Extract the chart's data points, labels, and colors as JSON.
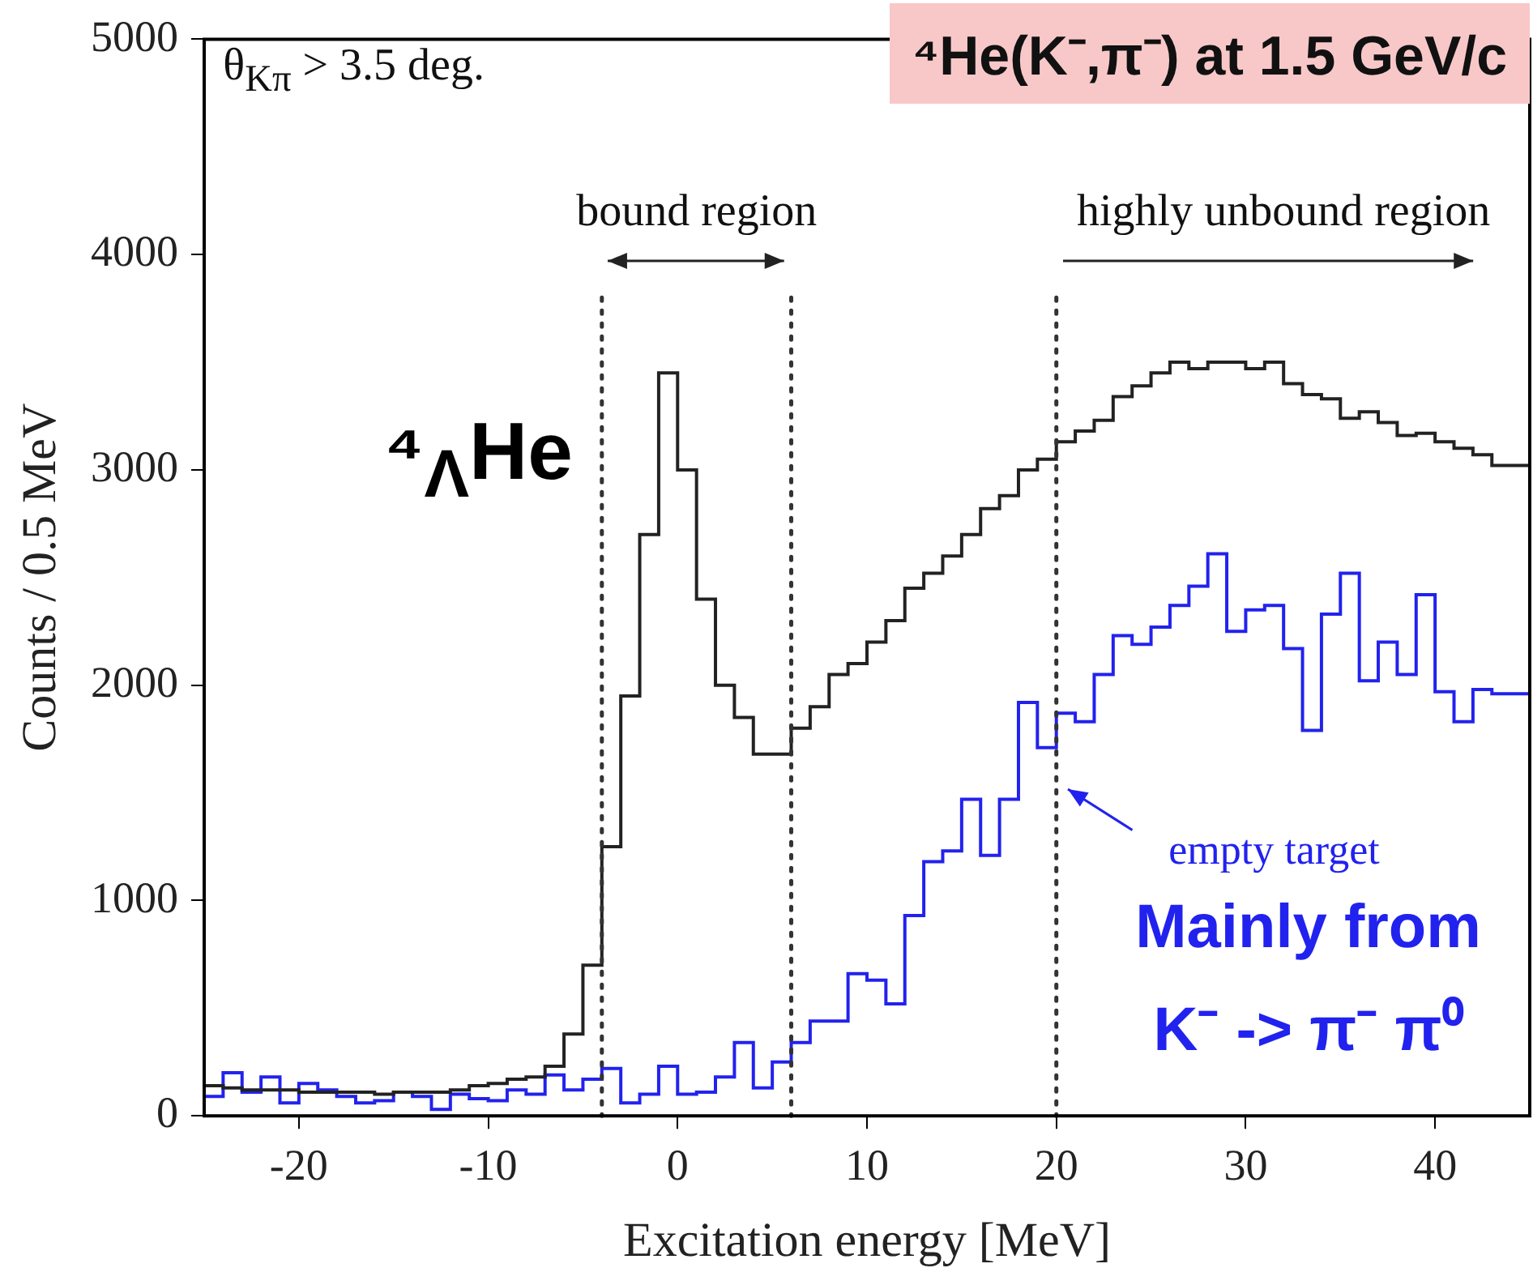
{
  "chart_data": {
    "type": "step",
    "title": "⁴He(K⁻,π⁻) at 1.5 GeV/c",
    "xlabel": "Excitation energy [MeV]",
    "ylabel": "Counts / 0.5 MeV",
    "x": [
      -25,
      -24,
      -23,
      -22,
      -21,
      -20,
      -19,
      -18,
      -17,
      -16,
      -15,
      -14,
      -13,
      -12,
      -11,
      -10,
      -9,
      -8,
      -7,
      -6,
      -5,
      -4,
      -3,
      -2,
      -1,
      0,
      1,
      2,
      3,
      4,
      5,
      6,
      7,
      8,
      9,
      10,
      11,
      12,
      13,
      14,
      15,
      16,
      17,
      18,
      19,
      20,
      21,
      22,
      23,
      24,
      25,
      26,
      27,
      28,
      29,
      30,
      31,
      32,
      33,
      34,
      35,
      36,
      37,
      38,
      39,
      40,
      41,
      42,
      43,
      44,
      45
    ],
    "series": [
      {
        "color": "#222222",
        "values": [
          150,
          140,
          130,
          120,
          120,
          120,
          110,
          110,
          110,
          110,
          100,
          110,
          110,
          110,
          120,
          140,
          150,
          170,
          180,
          230,
          380,
          700,
          1250,
          1950,
          2700,
          3450,
          3000,
          2400,
          2000,
          1850,
          1680,
          1680,
          1800,
          1900,
          2050,
          2100,
          2200,
          2300,
          2450,
          2520,
          2600,
          2700,
          2820,
          2880,
          3000,
          3050,
          3130,
          3180,
          3230,
          3340,
          3390,
          3450,
          3500,
          3470,
          3500,
          3500,
          3470,
          3500,
          3400,
          3350,
          3330,
          3240,
          3270,
          3220,
          3160,
          3170,
          3130,
          3100,
          3070,
          3020,
          3020
        ]
      },
      {
        "color": "#2222ee",
        "values": [
          90,
          90,
          200,
          110,
          180,
          60,
          150,
          120,
          90,
          60,
          70,
          110,
          90,
          30,
          100,
          80,
          70,
          120,
          100,
          190,
          120,
          170,
          220,
          60,
          100,
          230,
          100,
          110,
          180,
          340,
          130,
          250,
          340,
          440,
          440,
          660,
          630,
          520,
          930,
          1180,
          1230,
          1470,
          1210,
          1470,
          1920,
          1710,
          1870,
          1830,
          2050,
          2230,
          2190,
          2270,
          2370,
          2460,
          2610,
          2250,
          2350,
          2370,
          2170,
          1790,
          2330,
          2520,
          2020,
          2200,
          2050,
          2420,
          1970,
          1830,
          1980,
          1960,
          1960
        ]
      }
    ],
    "xlim": [
      -25,
      45
    ],
    "xticks": [
      -20,
      -10,
      0,
      10,
      20,
      30,
      40
    ],
    "ylim": [
      0,
      5000
    ],
    "yticks": [
      0,
      1000,
      2000,
      3000,
      4000,
      5000
    ],
    "ref_lines": [
      {
        "axis": "x",
        "value": -4,
        "color": "#333333",
        "line_style": "dotted"
      },
      {
        "axis": "x",
        "value": 6,
        "color": "#333333",
        "line_style": "dotted"
      },
      {
        "axis": "x",
        "value": 20,
        "color": "#333333",
        "line_style": "dotted"
      }
    ],
    "annotations": [
      "θ$_{Kπ}$ > 3.5 deg.",
      "bound region",
      "highly unbound region",
      "⁴$_{Λ}$He",
      "empty target",
      "Mainly from",
      "K⁻ -> π⁻ π⁰"
    ]
  }
}
